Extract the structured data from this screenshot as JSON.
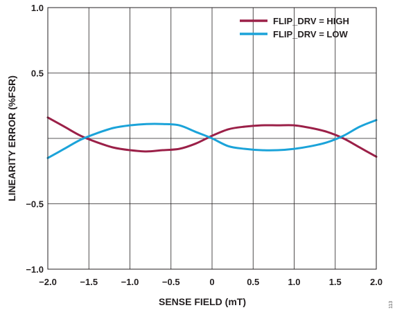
{
  "figure_id": "113",
  "chart_data": {
    "type": "line",
    "xlabel": "SENSE FIELD (mT)",
    "ylabel": "LINEARITY ERROR (%FSR)",
    "xlim": [
      -2.0,
      2.0
    ],
    "ylim": [
      -1.0,
      1.0
    ],
    "x_ticks": [
      "−2.0",
      "−1.5",
      "−1.0",
      "−0.5",
      "0",
      "0.5",
      "1.0",
      "1.5",
      "2.0"
    ],
    "y_ticks": [
      "1.0",
      "0.5",
      "",
      "−0.5",
      "−1.0"
    ],
    "grid": true,
    "legend_position": "top-right",
    "series": [
      {
        "name": "FLIP_DRV = HIGH",
        "color": "#9b2048",
        "x": [
          -2.0,
          -1.8,
          -1.6,
          -1.4,
          -1.2,
          -1.0,
          -0.8,
          -0.6,
          -0.4,
          -0.2,
          0.0,
          0.2,
          0.4,
          0.6,
          0.8,
          1.0,
          1.2,
          1.4,
          1.6,
          1.8,
          2.0
        ],
        "y": [
          0.16,
          0.09,
          0.02,
          -0.03,
          -0.07,
          -0.09,
          -0.1,
          -0.09,
          -0.08,
          -0.04,
          0.02,
          0.07,
          0.09,
          0.1,
          0.1,
          0.1,
          0.08,
          0.05,
          0.0,
          -0.07,
          -0.14
        ]
      },
      {
        "name": "FLIP_DRV = LOW",
        "color": "#1ba3d9",
        "x": [
          -2.0,
          -1.8,
          -1.6,
          -1.4,
          -1.2,
          -1.0,
          -0.8,
          -0.6,
          -0.4,
          -0.2,
          0.0,
          0.2,
          0.4,
          0.6,
          0.8,
          1.0,
          1.2,
          1.4,
          1.6,
          1.8,
          2.0
        ],
        "y": [
          -0.15,
          -0.08,
          -0.01,
          0.04,
          0.08,
          0.1,
          0.11,
          0.11,
          0.1,
          0.05,
          0.0,
          -0.06,
          -0.08,
          -0.09,
          -0.09,
          -0.08,
          -0.06,
          -0.03,
          0.02,
          0.09,
          0.14
        ]
      }
    ]
  }
}
